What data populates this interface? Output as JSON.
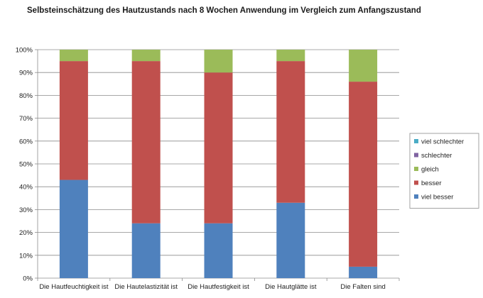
{
  "title": "Selbsteinschätzung des Hautzustands nach 8 Wochen Anwendung im Vergleich zum Anfangszustand",
  "chart_data": {
    "type": "bar",
    "stacked": true,
    "title": "Selbsteinschätzung des Hautzustands nach 8 Wochen Anwendung im Vergleich zum Anfangszustand",
    "xlabel": "",
    "ylabel": "",
    "ylim": [
      0,
      100
    ],
    "yticks": [
      "0%",
      "10%",
      "20%",
      "30%",
      "40%",
      "50%",
      "60%",
      "70%",
      "80%",
      "90%",
      "100%"
    ],
    "grid": true,
    "legend_position": "right",
    "categories": [
      "Die Hautfeuchtigkeit ist",
      "Die Hautelastizität ist",
      "Die Hautfestigkeit ist",
      "Die Hautglätte ist",
      "Die Falten sind"
    ],
    "series": [
      {
        "name": "viel besser",
        "color": "#4f81bd",
        "values": [
          43,
          24,
          24,
          33,
          5
        ]
      },
      {
        "name": "besser",
        "color": "#c0504d",
        "values": [
          52,
          71,
          66,
          62,
          81
        ]
      },
      {
        "name": "gleich",
        "color": "#9bbb59",
        "values": [
          5,
          5,
          10,
          5,
          14
        ]
      },
      {
        "name": "schlechter",
        "color": "#8064a2",
        "values": [
          0,
          0,
          0,
          0,
          0
        ]
      },
      {
        "name": "viel schlechter",
        "color": "#4bacc6",
        "values": [
          0,
          0,
          0,
          0,
          0
        ]
      }
    ]
  }
}
